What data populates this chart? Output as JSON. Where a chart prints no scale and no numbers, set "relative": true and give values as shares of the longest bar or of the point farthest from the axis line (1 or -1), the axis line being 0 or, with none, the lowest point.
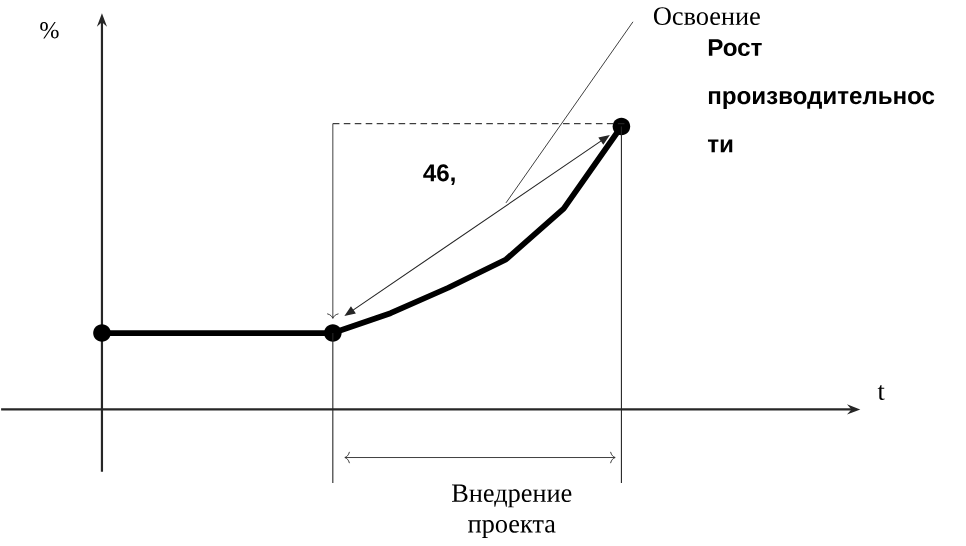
{
  "chart_data": {
    "type": "line",
    "ylabel": "%",
    "relative": true,
    "categories": [
      null,
      null,
      null,
      null,
      null,
      null,
      null,
      null,
      null,
      null
    ],
    "series": [
      {
        "color": "#000000",
        "values": [
          0.27,
          0.27,
          0.27,
          0.27,
          0.27,
          0.34,
          0.43,
          0.53,
          0.71,
          1
        ]
      }
    ],
    "annotations": [
      "Освоение",
      "Рост производительнос ти",
      "46,",
      "Внедрение проекта",
      "t"
    ]
  }
}
